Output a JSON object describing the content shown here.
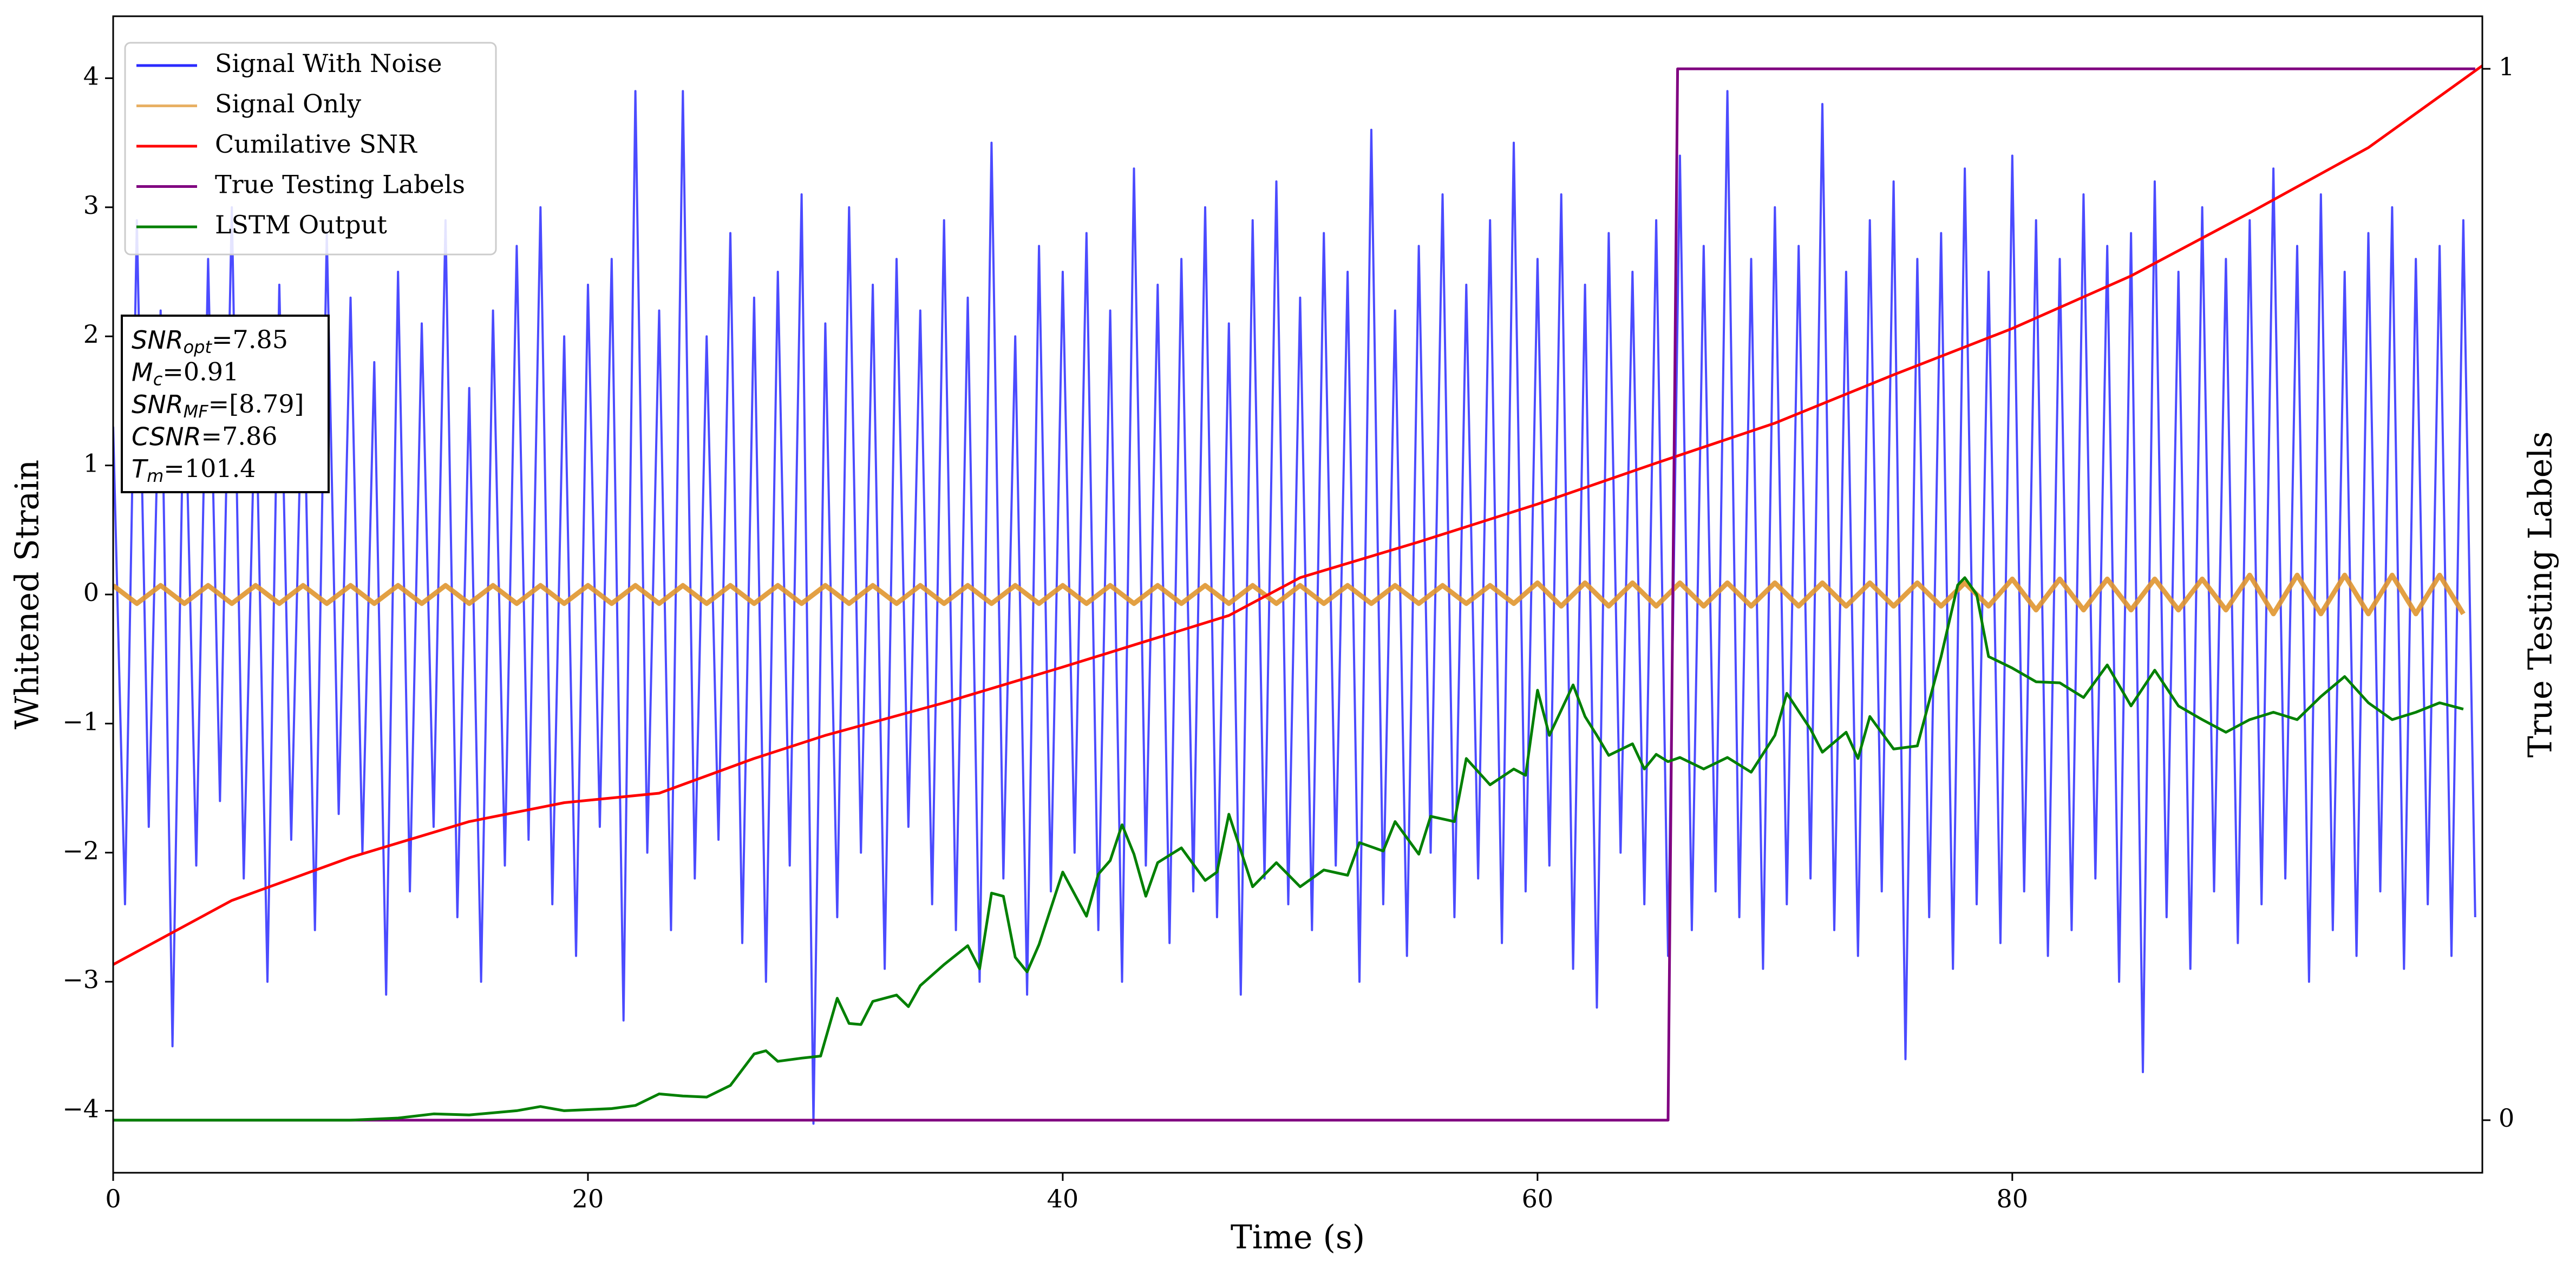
{
  "chart_data": {
    "type": "line",
    "xlabel": "Time (s)",
    "ylabel": "Whitened Strain",
    "y2label": "True Testing Labels",
    "xlim": [
      0,
      99.8
    ],
    "ylim": [
      -4.48,
      4.48
    ],
    "y2lim": [
      -0.05,
      1.05
    ],
    "xticks": [
      0,
      20,
      40,
      60,
      80
    ],
    "yticks": [
      {
        "value": -4,
        "label": "−4"
      },
      {
        "value": -3,
        "label": "−3"
      },
      {
        "value": -2,
        "label": "−2"
      },
      {
        "value": -1,
        "label": "−1"
      },
      0,
      1,
      2,
      3,
      4
    ],
    "y2ticks": [
      0,
      1
    ],
    "legend": "upper left",
    "annotation": [
      {
        "name": "SNR",
        "sub": "opt",
        "text": "=7.85"
      },
      {
        "name": "M",
        "sub": "c",
        "text": "=0.91"
      },
      {
        "name": "SNR",
        "sub": "MF",
        "text": "=[8.79]"
      },
      {
        "name": "CSNR",
        "sub": "",
        "text": "=7.86"
      },
      {
        "name": "T",
        "sub": "m",
        "text": "=101.4"
      }
    ],
    "series": [
      {
        "name": "Signal With Noise",
        "color": "#2b2bff",
        "axis": "y",
        "x": [
          0,
          0.5,
          1,
          1.5,
          2,
          2.5,
          3,
          3.5,
          4,
          4.5,
          5,
          5.5,
          6,
          6.5,
          7,
          7.5,
          8,
          8.5,
          9,
          9.5,
          10,
          10.5,
          11,
          11.5,
          12,
          12.5,
          13,
          13.5,
          14,
          14.5,
          15,
          15.5,
          16,
          16.5,
          17,
          17.5,
          18,
          18.5,
          19,
          19.5,
          20,
          20.5,
          21,
          21.5,
          22,
          22.5,
          23,
          23.5,
          24,
          24.5,
          25,
          25.5,
          26,
          26.5,
          27,
          27.5,
          28,
          28.5,
          29,
          29.5,
          30,
          30.5,
          31,
          31.5,
          32,
          32.5,
          33,
          33.5,
          34,
          34.5,
          35,
          35.5,
          36,
          36.5,
          37,
          37.5,
          38,
          38.5,
          39,
          39.5,
          40,
          40.5,
          41,
          41.5,
          42,
          42.5,
          43,
          43.5,
          44,
          44.5,
          45,
          45.5,
          46,
          46.5,
          47,
          47.5,
          48,
          48.5,
          49,
          49.5,
          50,
          50.5,
          51,
          51.5,
          52,
          52.5,
          53,
          53.5,
          54,
          54.5,
          55,
          55.5,
          56,
          56.5,
          57,
          57.5,
          58,
          58.5,
          59,
          59.5,
          60,
          60.5,
          61,
          61.5,
          62,
          62.5,
          63,
          63.5,
          64,
          64.5,
          65,
          65.5,
          66,
          66.5,
          67,
          67.5,
          68,
          68.5,
          69,
          69.5,
          70,
          70.5,
          71,
          71.5,
          72,
          72.5,
          73,
          73.5,
          74,
          74.5,
          75,
          75.5,
          76,
          76.5,
          77,
          77.5,
          78,
          78.5,
          79,
          79.5,
          80,
          80.5,
          81,
          81.5,
          82,
          82.5,
          83,
          83.5,
          84,
          84.5,
          85,
          85.5,
          86,
          86.5,
          87,
          87.5,
          88,
          88.5,
          89,
          89.5,
          90,
          90.5,
          91,
          91.5,
          92,
          92.5,
          93,
          93.5,
          94,
          94.5,
          95,
          95.5,
          96,
          96.5,
          97,
          97.5,
          98,
          98.5,
          99,
          99.5
        ],
        "values": [
          1.3,
          -2.4,
          2.9,
          -1.8,
          2.2,
          -3.5,
          1.9,
          -2.1,
          2.6,
          -1.6,
          3.0,
          -2.2,
          1.7,
          -3.0,
          2.4,
          -1.9,
          2.0,
          -2.6,
          2.8,
          -1.7,
          2.3,
          -2.0,
          1.8,
          -3.1,
          2.5,
          -2.3,
          2.1,
          -1.8,
          2.9,
          -2.5,
          1.6,
          -3.0,
          2.2,
          -2.1,
          2.7,
          -1.9,
          3.0,
          -2.4,
          2.0,
          -2.8,
          2.4,
          -1.8,
          2.6,
          -3.3,
          3.9,
          -2.0,
          2.2,
          -2.6,
          3.9,
          -2.2,
          2.0,
          -1.9,
          2.8,
          -2.7,
          2.3,
          -3.0,
          2.5,
          -2.1,
          3.1,
          -4.1,
          2.1,
          -2.5,
          3.0,
          -2.0,
          2.4,
          -2.9,
          2.6,
          -1.8,
          2.2,
          -2.4,
          2.9,
          -2.6,
          2.3,
          -3.0,
          3.5,
          -2.2,
          2.0,
          -3.1,
          2.7,
          -2.3,
          2.5,
          -2.0,
          2.8,
          -2.6,
          2.2,
          -3.0,
          3.3,
          -2.1,
          2.4,
          -2.7,
          2.6,
          -2.3,
          3.0,
          -2.5,
          2.1,
          -3.1,
          2.9,
          -2.2,
          3.2,
          -2.4,
          2.3,
          -2.6,
          2.8,
          -2.1,
          2.5,
          -3.0,
          3.6,
          -2.4,
          2.2,
          -2.8,
          2.7,
          -2.0,
          3.1,
          -2.5,
          2.4,
          -2.2,
          2.9,
          -2.7,
          3.5,
          -2.3,
          2.6,
          -2.1,
          3.1,
          -2.9,
          2.4,
          -3.2,
          2.8,
          -2.0,
          2.5,
          -2.4,
          2.9,
          -2.8,
          3.4,
          -2.6,
          2.7,
          -2.3,
          3.9,
          -2.5,
          2.6,
          -2.9,
          3.0,
          -2.4,
          2.7,
          -2.2,
          3.8,
          -2.6,
          2.5,
          -2.8,
          2.9,
          -2.3,
          3.2,
          -3.6,
          2.6,
          -2.5,
          2.8,
          -2.9,
          3.3,
          -2.4,
          2.5,
          -2.7,
          3.4,
          -2.3,
          2.9,
          -2.8,
          2.6,
          -2.6,
          3.1,
          -2.2,
          2.7,
          -3.0,
          2.8,
          -3.7,
          3.2,
          -2.5,
          2.5,
          -2.9,
          3.0,
          -2.3,
          2.6,
          -2.7,
          2.9,
          -2.4,
          3.3,
          -2.2,
          2.7,
          -3.0,
          3.1,
          -2.6,
          2.5,
          -2.8,
          2.8,
          -2.3,
          3.0,
          -2.9,
          2.6,
          -2.4,
          2.7,
          -2.8,
          2.9,
          -2.5
        ]
      },
      {
        "name": "Signal Only",
        "color": "#e0962f",
        "axis": "y",
        "x": [
          0,
          1,
          2,
          3,
          4,
          5,
          6,
          7,
          8,
          9,
          10,
          11,
          12,
          13,
          14,
          15,
          16,
          17,
          18,
          19,
          20,
          21,
          22,
          23,
          24,
          25,
          26,
          27,
          28,
          29,
          30,
          31,
          32,
          33,
          34,
          35,
          36,
          37,
          38,
          39,
          40,
          41,
          42,
          43,
          44,
          45,
          46,
          47,
          48,
          49,
          50,
          51,
          52,
          53,
          54,
          55,
          56,
          57,
          58,
          59,
          60,
          61,
          62,
          63,
          64,
          65,
          66,
          67,
          68,
          69,
          70,
          71,
          72,
          73,
          74,
          75,
          76,
          77,
          78,
          79,
          80,
          81,
          82,
          83,
          84,
          85,
          86,
          87,
          88,
          89,
          90,
          91,
          92,
          93,
          94,
          95,
          96,
          97,
          98,
          99
        ],
        "values": [
          0.07,
          -0.07,
          0.07,
          -0.07,
          0.07,
          -0.07,
          0.07,
          -0.07,
          0.07,
          -0.07,
          0.07,
          -0.07,
          0.07,
          -0.07,
          0.07,
          -0.07,
          0.07,
          -0.07,
          0.07,
          -0.07,
          0.07,
          -0.07,
          0.07,
          -0.07,
          0.07,
          -0.07,
          0.07,
          -0.07,
          0.07,
          -0.07,
          0.07,
          -0.07,
          0.07,
          -0.07,
          0.07,
          -0.07,
          0.07,
          -0.07,
          0.07,
          -0.07,
          0.07,
          -0.07,
          0.07,
          -0.07,
          0.07,
          -0.07,
          0.07,
          -0.07,
          0.07,
          -0.07,
          0.07,
          -0.07,
          0.07,
          -0.07,
          0.07,
          -0.07,
          0.07,
          -0.07,
          0.07,
          -0.07,
          0.09,
          -0.09,
          0.09,
          -0.09,
          0.09,
          -0.09,
          0.09,
          -0.09,
          0.09,
          -0.09,
          0.09,
          -0.09,
          0.09,
          -0.09,
          0.09,
          -0.09,
          0.09,
          -0.09,
          0.09,
          -0.09,
          0.12,
          -0.12,
          0.12,
          -0.12,
          0.12,
          -0.12,
          0.12,
          -0.12,
          0.12,
          -0.12,
          0.15,
          -0.15,
          0.15,
          -0.15,
          0.15,
          -0.15,
          0.15,
          -0.15,
          0.15,
          -0.15
        ]
      },
      {
        "name": "Cumilative SNR",
        "color": "#ff0000",
        "axis": "y2",
        "x": [
          0,
          5,
          10,
          15,
          19,
          23,
          27,
          30,
          35,
          40,
          43,
          47,
          50,
          55,
          60,
          65,
          70,
          75,
          80,
          85,
          90,
          95,
          99.8
        ],
        "values": [
          0.148,
          0.209,
          0.25,
          0.284,
          0.302,
          0.311,
          0.344,
          0.366,
          0.397,
          0.431,
          0.452,
          0.48,
          0.516,
          0.55,
          0.586,
          0.625,
          0.663,
          0.709,
          0.753,
          0.803,
          0.863,
          0.925,
          1.003
        ]
      },
      {
        "name": "True Testing Labels",
        "color": "#800080",
        "axis": "y2",
        "x": [
          0,
          65.5,
          65.9,
          99.5
        ],
        "values": [
          0,
          0,
          1,
          1
        ]
      },
      {
        "name": "LSTM Output",
        "color": "#008000",
        "axis": "y2",
        "x": [
          0,
          10,
          12,
          13.5,
          15,
          17,
          18,
          19,
          21,
          22,
          23,
          24,
          25,
          26,
          27,
          27.5,
          28,
          29,
          29.8,
          30.5,
          31,
          31.5,
          32,
          33,
          33.5,
          34,
          35,
          36,
          36.5,
          37,
          37.5,
          38,
          38.5,
          39,
          40,
          41,
          41.5,
          42,
          42.5,
          43,
          43.5,
          44,
          45,
          46,
          46.5,
          47,
          48,
          49,
          50,
          51,
          52,
          52.5,
          53.5,
          54,
          55,
          55.5,
          56.5,
          57,
          58,
          59,
          59.5,
          60,
          60.5,
          61.5,
          62,
          62.5,
          63,
          64,
          64.5,
          65,
          65.5,
          66,
          67,
          68,
          69,
          70,
          70.5,
          71.5,
          72,
          73,
          73.5,
          74,
          75,
          76,
          77,
          77.7,
          78,
          78.5,
          79,
          80,
          81,
          82,
          83,
          84,
          85,
          86,
          87,
          88,
          89,
          90,
          91,
          92,
          93,
          94,
          95,
          96,
          97,
          98,
          99
        ],
        "values": [
          0,
          0,
          0.002,
          0.006,
          0.005,
          0.009,
          0.013,
          0.009,
          0.011,
          0.014,
          0.025,
          0.023,
          0.022,
          0.033,
          0.063,
          0.066,
          0.056,
          0.059,
          0.061,
          0.116,
          0.092,
          0.091,
          0.113,
          0.119,
          0.108,
          0.128,
          0.148,
          0.166,
          0.144,
          0.216,
          0.213,
          0.155,
          0.141,
          0.167,
          0.236,
          0.194,
          0.234,
          0.247,
          0.281,
          0.253,
          0.213,
          0.245,
          0.259,
          0.228,
          0.236,
          0.291,
          0.222,
          0.245,
          0.222,
          0.238,
          0.233,
          0.264,
          0.256,
          0.284,
          0.253,
          0.289,
          0.284,
          0.344,
          0.319,
          0.334,
          0.328,
          0.409,
          0.366,
          0.414,
          0.384,
          0.366,
          0.347,
          0.358,
          0.334,
          0.348,
          0.341,
          0.345,
          0.334,
          0.345,
          0.331,
          0.366,
          0.406,
          0.372,
          0.35,
          0.369,
          0.344,
          0.384,
          0.353,
          0.356,
          0.441,
          0.509,
          0.516,
          0.5,
          0.441,
          0.43,
          0.417,
          0.416,
          0.402,
          0.433,
          0.394,
          0.428,
          0.394,
          0.381,
          0.369,
          0.381,
          0.388,
          0.381,
          0.403,
          0.422,
          0.397,
          0.381,
          0.388,
          0.397,
          0.391
        ]
      }
    ]
  }
}
